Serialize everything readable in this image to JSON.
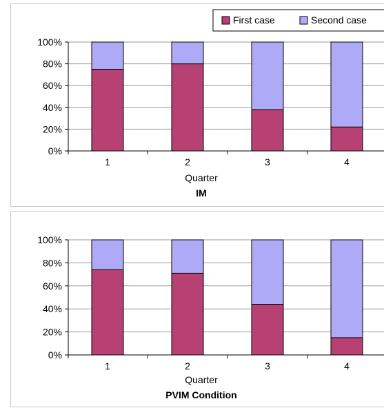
{
  "colors": {
    "first": "#b84173",
    "second": "#aeaaf7",
    "stroke": "#000000",
    "grid": "#9a9a9a"
  },
  "chart_data": [
    {
      "type": "bar",
      "stacked": true,
      "percent": true,
      "categories": [
        "1",
        "2",
        "3",
        "4"
      ],
      "series": [
        {
          "name": "First case",
          "values": [
            75,
            80,
            38,
            22
          ]
        },
        {
          "name": "Second case",
          "values": [
            25,
            20,
            62,
            78
          ]
        }
      ],
      "xlabel": "Quarter",
      "caption": "IM",
      "ylim": [
        0,
        100
      ],
      "yticks": [
        "0%",
        "20%",
        "40%",
        "60%",
        "80%",
        "100%"
      ],
      "grid": true,
      "legend": "top-right"
    },
    {
      "type": "bar",
      "stacked": true,
      "percent": true,
      "categories": [
        "1",
        "2",
        "3",
        "4"
      ],
      "series": [
        {
          "values": [
            74,
            71,
            44,
            15
          ]
        },
        {
          "values": [
            26,
            29,
            56,
            85
          ]
        }
      ],
      "xlabel": "Quarter",
      "caption": "PVIM Condition",
      "ylim": [
        0,
        100
      ],
      "yticks": [
        "0%",
        "20%",
        "40%",
        "60%",
        "80%",
        "100%"
      ],
      "grid": true
    }
  ]
}
